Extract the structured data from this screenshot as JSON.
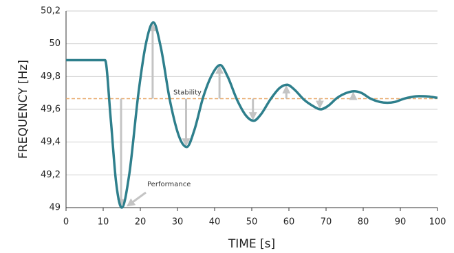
{
  "chart_data": {
    "type": "line",
    "x_label": "TIME [s]",
    "y_label": "FREQUENCY [Hz]",
    "x": [
      0,
      10.5,
      12,
      13.5,
      15,
      17,
      19.5,
      21.5,
      23.5,
      25.5,
      28,
      30.5,
      32.5,
      34.5,
      37,
      39.5,
      41.5,
      43.5,
      46,
      48.5,
      50.5,
      52.5,
      55,
      57.5,
      59.5,
      61.5,
      64,
      66.5,
      68.5,
      70.5,
      73,
      75.5,
      77.5,
      79.5,
      82,
      84.5,
      86.5,
      88.5,
      91,
      93,
      95,
      97.5,
      100
    ],
    "series": [
      {
        "color": "#2e7f8c",
        "values": [
          49.9,
          49.9,
          49.55,
          49.15,
          49.0,
          49.2,
          49.7,
          50.0,
          50.13,
          49.98,
          49.65,
          49.43,
          49.37,
          49.47,
          49.68,
          49.82,
          49.87,
          49.8,
          49.66,
          49.56,
          49.53,
          49.57,
          49.66,
          49.73,
          49.75,
          49.72,
          49.66,
          49.62,
          49.6,
          49.62,
          49.67,
          49.7,
          49.71,
          49.7,
          49.665,
          49.645,
          49.64,
          49.645,
          49.665,
          49.675,
          49.68,
          49.678,
          49.67
        ]
      }
    ],
    "xlim": [
      0,
      100
    ],
    "xticks": [
      0,
      10,
      20,
      30,
      40,
      50,
      60,
      70,
      80,
      90,
      100
    ],
    "ylim": [
      49,
      50.2
    ],
    "yticks": [
      49,
      {
        "value": 49.2,
        "label": "49,2"
      },
      {
        "value": 49.4,
        "label": "49,4"
      },
      {
        "value": 49.6,
        "label": "49,6"
      },
      {
        "value": 49.8,
        "label": "49,8"
      },
      50,
      {
        "value": 50.2,
        "label": "50,2"
      }
    ],
    "grid": true,
    "reference_line": {
      "label": "Stability",
      "value": 49.665,
      "color": "#e8a86a"
    },
    "annotations": [
      {
        "text": "Performance"
      }
    ]
  }
}
